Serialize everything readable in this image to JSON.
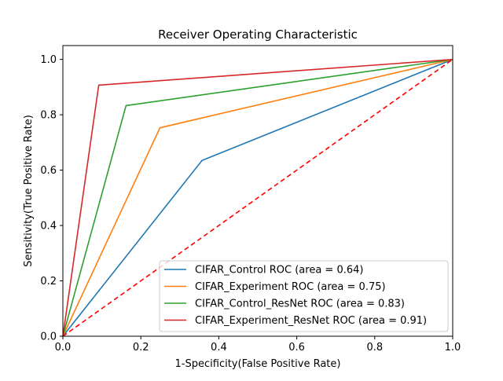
{
  "chart_data": {
    "type": "line",
    "title": "Receiver Operating Characteristic",
    "xlabel": "1-Specificity(False Positive Rate)",
    "ylabel": "Sensitivity(True Positive Rate)",
    "xlim": [
      0,
      1
    ],
    "ylim": [
      0,
      1.05
    ],
    "xticks": [
      0.0,
      0.2,
      0.4,
      0.6,
      0.8,
      1.0
    ],
    "yticks": [
      0.0,
      0.2,
      0.4,
      0.6,
      0.8,
      1.0
    ],
    "xtick_labels": [
      "0.0",
      "0.2",
      "0.4",
      "0.6",
      "0.8",
      "1.0"
    ],
    "ytick_labels": [
      "0.0",
      "0.2",
      "0.4",
      "0.6",
      "0.8",
      "1.0"
    ],
    "grid": false,
    "legend_position": "lower-right",
    "series": [
      {
        "name": "CIFAR_Control ROC (area = 0.64)",
        "color": "#1f77b4",
        "x": [
          0.0,
          0.357,
          1.0
        ],
        "y": [
          0.0,
          0.635,
          1.0
        ]
      },
      {
        "name": "CIFAR_Experiment ROC (area = 0.75)",
        "color": "#ff7f0e",
        "x": [
          0.0,
          0.249,
          1.0
        ],
        "y": [
          0.0,
          0.753,
          1.0
        ]
      },
      {
        "name": "CIFAR_Control_ResNet ROC (area = 0.83)",
        "color": "#2ca02c",
        "x": [
          0.0,
          0.162,
          1.0
        ],
        "y": [
          0.0,
          0.833,
          1.0
        ]
      },
      {
        "name": "CIFAR_Experiment_ResNet ROC (area = 0.91)",
        "color": "#d62728",
        "x": [
          0.0,
          0.092,
          1.0
        ],
        "y": [
          0.0,
          0.907,
          1.0
        ]
      }
    ],
    "reference_line": {
      "color": "#ff0000",
      "style": "dashed",
      "x": [
        0,
        1
      ],
      "y": [
        0,
        1
      ]
    }
  }
}
